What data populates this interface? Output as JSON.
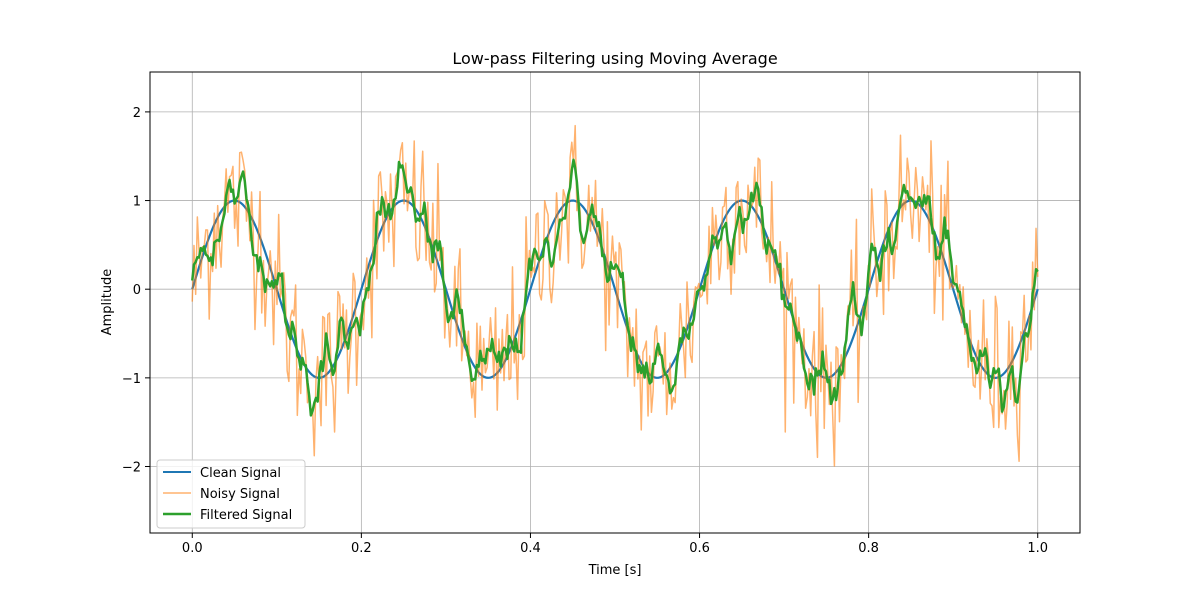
{
  "chart_data": {
    "type": "line",
    "title": "Low-pass Filtering using Moving Average",
    "xlabel": "Time [s]",
    "ylabel": "Amplitude",
    "xlim": [
      -0.05,
      1.05
    ],
    "ylim": [
      -2.75,
      2.45
    ],
    "xticks": [
      0.0,
      0.2,
      0.4,
      0.6,
      0.8,
      1.0
    ],
    "xtick_labels": [
      "0.0",
      "0.2",
      "0.4",
      "0.6",
      "0.8",
      "1.0"
    ],
    "yticks": [
      -2,
      -1,
      0,
      1,
      2
    ],
    "ytick_labels": [
      "−2",
      "−1",
      "0",
      "1",
      "2"
    ],
    "grid": true,
    "legend": {
      "position": "lower-left"
    },
    "series": [
      {
        "name": "Clean Signal",
        "color": "#1f77b4",
        "kind": "sine",
        "frequency_hz": 5,
        "amplitude": 1,
        "x_start": 0.0,
        "x_end": 1.0,
        "num_points": 500
      },
      {
        "name": "Noisy Signal",
        "color": "#ff7f0e",
        "opacity": 0.6,
        "kind": "sine_plus_noise",
        "frequency_hz": 5,
        "amplitude": 1,
        "noise_std": 0.45,
        "x_start": 0.0,
        "x_end": 1.0,
        "num_points": 500
      },
      {
        "name": "Filtered Signal",
        "color": "#2ca02c",
        "kind": "moving_average_of_noisy",
        "window": 5,
        "x_start": 0.0,
        "x_end": 1.0,
        "num_points": 500
      }
    ]
  }
}
